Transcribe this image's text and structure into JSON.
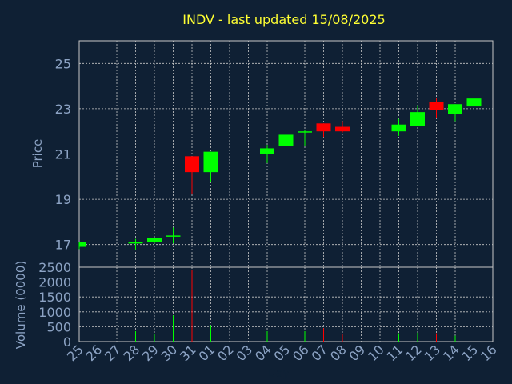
{
  "chart_data": {
    "type": "candlestick",
    "title": "INDV - last updated 15/08/2025",
    "colors": {
      "up": "#00ff00",
      "down": "#ff0000",
      "background": "#0f2034",
      "tick_text": "#8ca3c4",
      "title_text": "#ffff33",
      "grid": "#c8c8c8"
    },
    "xlabel": "Day",
    "x_ticks": [
      "25",
      "26",
      "27",
      "28",
      "29",
      "30",
      "31",
      "01",
      "02",
      "03",
      "04",
      "05",
      "06",
      "07",
      "08",
      "09",
      "10",
      "11",
      "12",
      "13",
      "14",
      "15",
      "16"
    ],
    "price_panel": {
      "ylabel": "Price",
      "ylim": [
        16,
        26
      ],
      "y_ticks": [
        17,
        19,
        21,
        23,
        25
      ],
      "grid": true
    },
    "volume_panel": {
      "ylabel": "Volume (0000)",
      "ylim": [
        0,
        2500
      ],
      "y_ticks": [
        0,
        500,
        1000,
        1500,
        2000,
        2500
      ],
      "grid": true
    },
    "candles": [
      {
        "day": "25",
        "open": 16.9,
        "high": 17.1,
        "low": 16.8,
        "close": 17.1,
        "volume": 0
      },
      {
        "day": "28",
        "open": 17.05,
        "high": 17.25,
        "low": 16.75,
        "close": 17.1,
        "volume": 350
      },
      {
        "day": "29",
        "open": 17.1,
        "high": 17.3,
        "low": 17.05,
        "close": 17.3,
        "volume": 250
      },
      {
        "day": "30",
        "open": 17.35,
        "high": 17.75,
        "low": 17.05,
        "close": 17.4,
        "volume": 880
      },
      {
        "day": "31",
        "open": 20.9,
        "high": 20.9,
        "low": 19.25,
        "close": 20.2,
        "volume": 2400
      },
      {
        "day": "01",
        "open": 20.2,
        "high": 21.1,
        "low": 19.75,
        "close": 21.1,
        "volume": 550
      },
      {
        "day": "04",
        "open": 21.0,
        "high": 21.4,
        "low": 20.6,
        "close": 21.25,
        "volume": 350
      },
      {
        "day": "05",
        "open": 21.35,
        "high": 21.9,
        "low": 21.15,
        "close": 21.85,
        "volume": 580
      },
      {
        "day": "06",
        "open": 21.95,
        "high": 22.05,
        "low": 21.35,
        "close": 22.0,
        "volume": 350
      },
      {
        "day": "07",
        "open": 22.35,
        "high": 22.35,
        "low": 21.75,
        "close": 22.0,
        "volume": 450
      },
      {
        "day": "08",
        "open": 22.2,
        "high": 22.45,
        "low": 21.95,
        "close": 22.0,
        "volume": 240
      },
      {
        "day": "11",
        "open": 22.0,
        "high": 22.55,
        "low": 21.8,
        "close": 22.3,
        "volume": 280
      },
      {
        "day": "12",
        "open": 22.25,
        "high": 23.15,
        "low": 22.25,
        "close": 22.85,
        "volume": 300
      },
      {
        "day": "13",
        "open": 23.3,
        "high": 23.45,
        "low": 22.6,
        "close": 22.95,
        "volume": 280
      },
      {
        "day": "14",
        "open": 22.75,
        "high": 23.2,
        "low": 22.45,
        "close": 23.2,
        "volume": 200
      },
      {
        "day": "15",
        "open": 23.1,
        "high": 23.55,
        "low": 22.95,
        "close": 23.45,
        "volume": 230
      }
    ]
  }
}
